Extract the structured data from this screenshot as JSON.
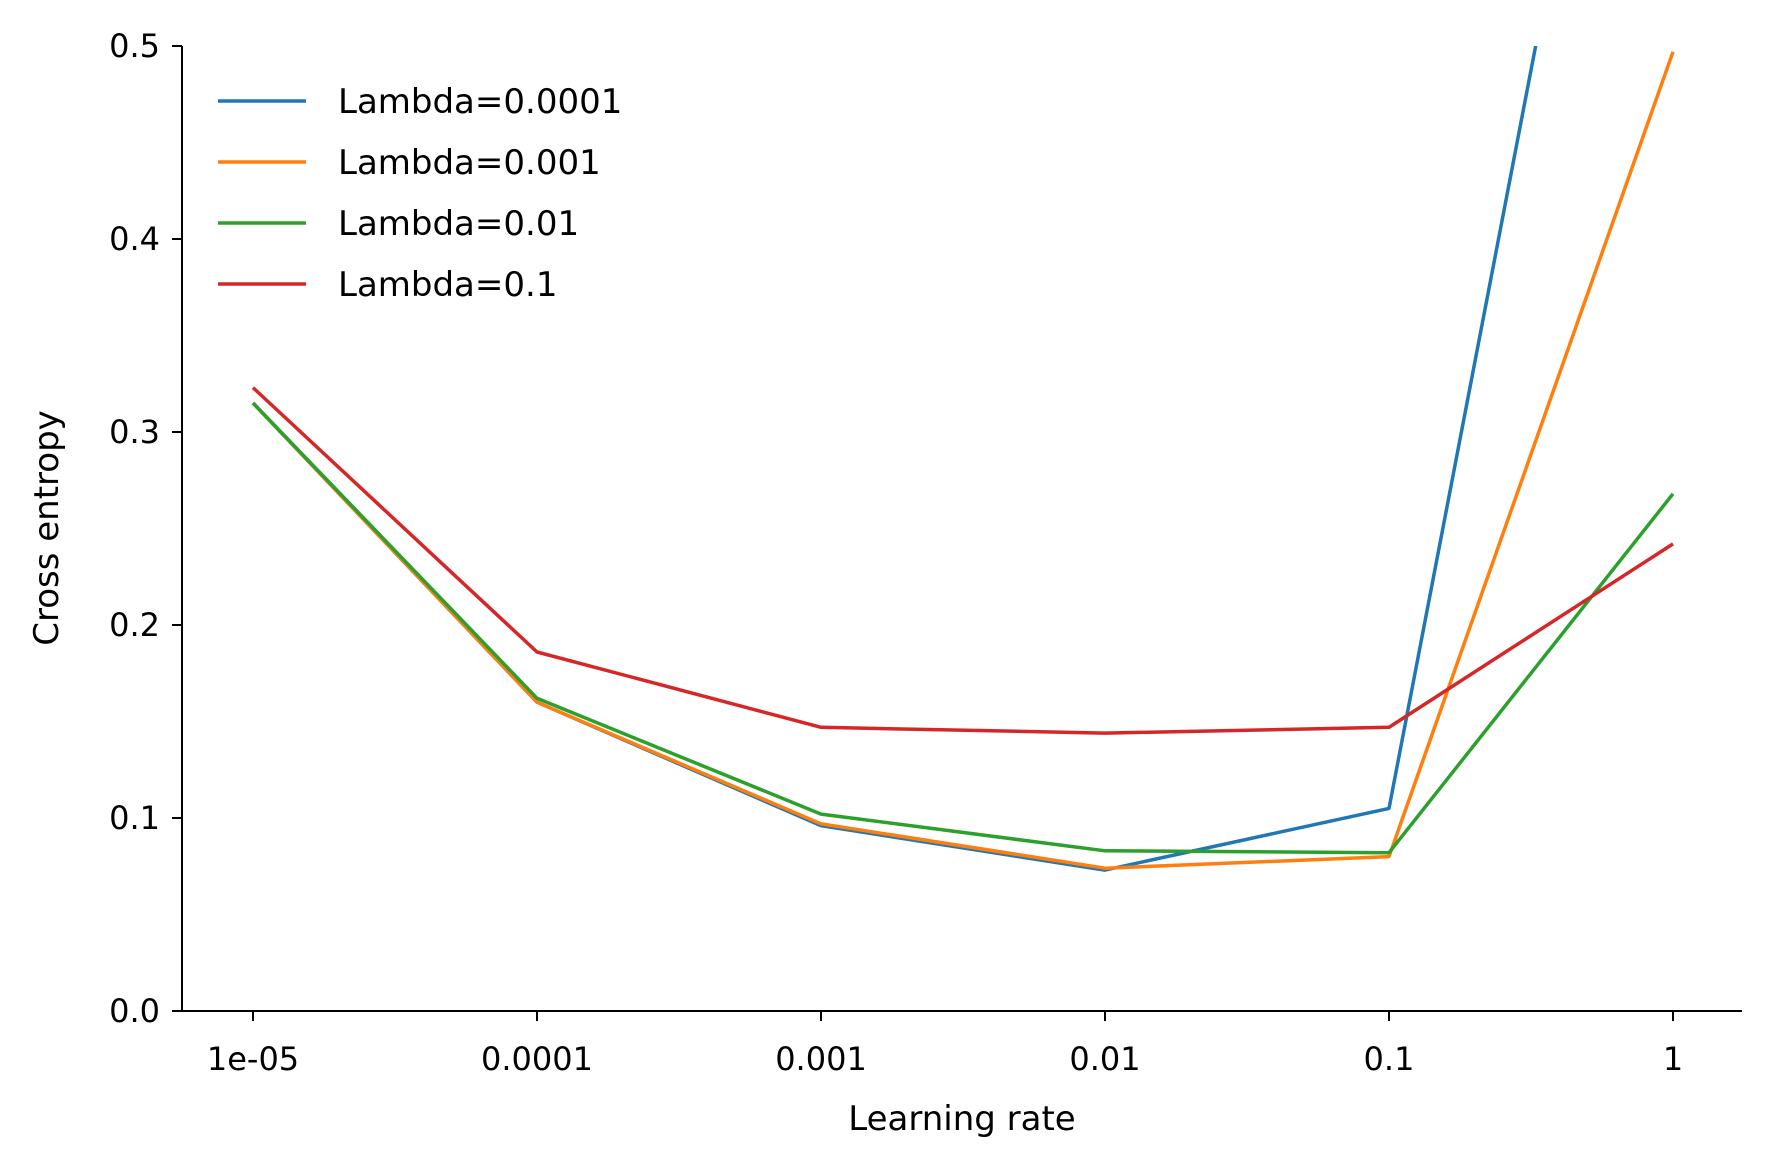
{
  "chart_data": {
    "type": "line",
    "title": "",
    "xlabel": "Learning rate",
    "ylabel": "Cross entropy",
    "x_scale": "log",
    "x": [
      1e-05,
      0.0001,
      0.001,
      0.01,
      0.1,
      1
    ],
    "x_tick_labels": [
      "1e-05",
      "0.0001",
      "0.001",
      "0.01",
      "0.1",
      "1"
    ],
    "ylim": [
      0.0,
      0.5
    ],
    "y_ticks": [
      0.0,
      0.1,
      0.2,
      0.3,
      0.4,
      0.5
    ],
    "y_tick_labels": [
      "0.0",
      "0.1",
      "0.2",
      "0.3",
      "0.4",
      "0.5"
    ],
    "grid": false,
    "legend_position": "top-left",
    "series": [
      {
        "name": "Lambda=0.0001",
        "color": "#1f77b4",
        "values": [
          0.315,
          0.16,
          0.096,
          0.073,
          0.105,
          0.87
        ]
      },
      {
        "name": "Lambda=0.001",
        "color": "#ff7f0e",
        "values": [
          0.315,
          0.16,
          0.097,
          0.074,
          0.08,
          0.497
        ]
      },
      {
        "name": "Lambda=0.01",
        "color": "#2ca02c",
        "values": [
          0.315,
          0.162,
          0.102,
          0.083,
          0.082,
          0.268
        ]
      },
      {
        "name": "Lambda=0.1",
        "color": "#d62728",
        "values": [
          0.323,
          0.186,
          0.147,
          0.144,
          0.147,
          0.242
        ]
      }
    ]
  }
}
